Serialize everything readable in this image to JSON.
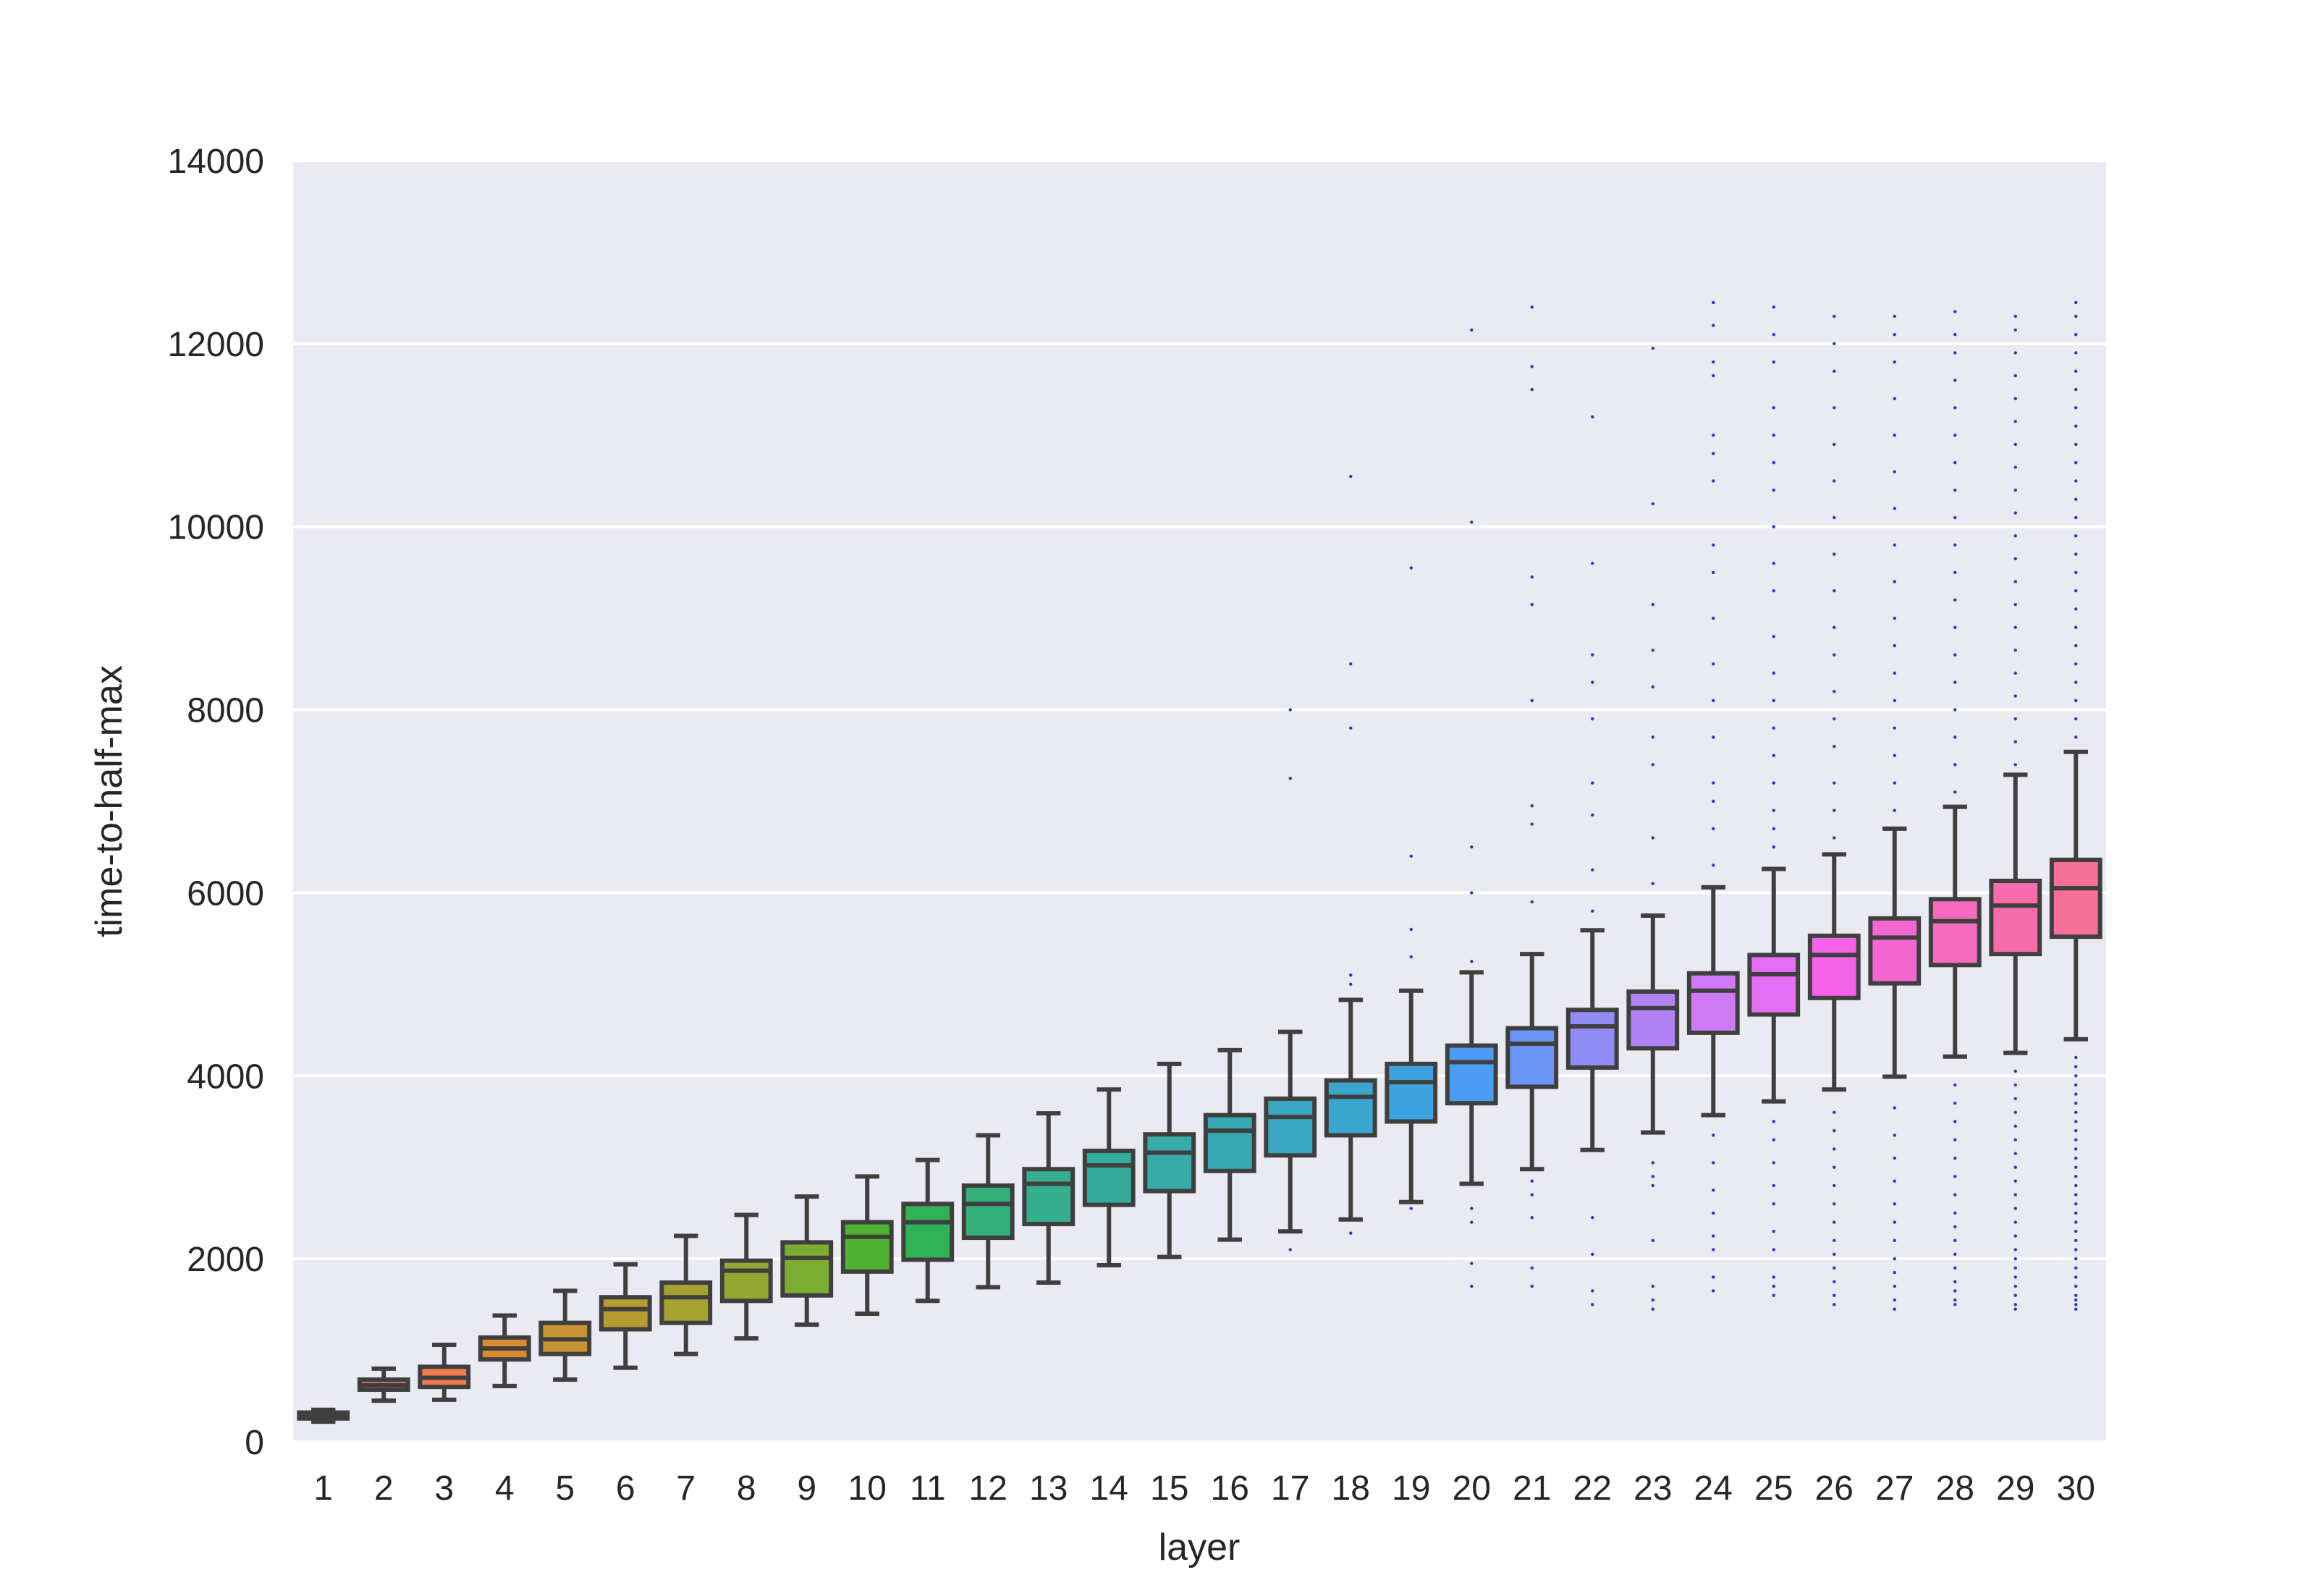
{
  "chart_data": {
    "type": "box",
    "title": "",
    "xlabel": "layer",
    "ylabel": "time-to-half-max",
    "ylim": [
      0,
      14000
    ],
    "yticks": [
      0,
      2000,
      4000,
      6000,
      8000,
      10000,
      12000,
      14000
    ],
    "grid": true,
    "legend": "none",
    "outlier_color": "#3333cc",
    "categories": [
      "1",
      "2",
      "3",
      "4",
      "5",
      "6",
      "7",
      "8",
      "9",
      "10",
      "11",
      "12",
      "13",
      "14",
      "15",
      "16",
      "17",
      "18",
      "19",
      "20",
      "21",
      "22",
      "23",
      "24",
      "25",
      "26",
      "27",
      "28",
      "29",
      "30"
    ],
    "colors": [
      "#f77189",
      "#f77575",
      "#f37c4c",
      "#d98b32",
      "#c69432",
      "#b59c31",
      "#a5a231",
      "#93a731",
      "#7aad31",
      "#4fb331",
      "#32b256",
      "#33b07a",
      "#34ae8d",
      "#35ac9b",
      "#36aba7",
      "#37a9b2",
      "#38a7bf",
      "#3aa5cd",
      "#3da2df",
      "#4d9cf4",
      "#6b95f4",
      "#8f8cf4",
      "#b083f4",
      "#cd7af4",
      "#e56ff4",
      "#f564e6",
      "#f567d0",
      "#f66bbd",
      "#f66dab",
      "#f7709a"
    ],
    "boxes": [
      {
        "whislo": 220,
        "q1": 255,
        "med": 285,
        "q3": 320,
        "whishi": 350
      },
      {
        "whislo": 450,
        "q1": 570,
        "med": 620,
        "q3": 680,
        "whishi": 800
      },
      {
        "whislo": 460,
        "q1": 600,
        "med": 700,
        "q3": 820,
        "whishi": 1060
      },
      {
        "whislo": 610,
        "q1": 900,
        "med": 1020,
        "q3": 1140,
        "whishi": 1380
      },
      {
        "whislo": 680,
        "q1": 960,
        "med": 1120,
        "q3": 1300,
        "whishi": 1650
      },
      {
        "whislo": 810,
        "q1": 1230,
        "med": 1450,
        "q3": 1580,
        "whishi": 1940
      },
      {
        "whislo": 960,
        "q1": 1300,
        "med": 1580,
        "q3": 1740,
        "whishi": 2250
      },
      {
        "whislo": 1130,
        "q1": 1540,
        "med": 1870,
        "q3": 1980,
        "whishi": 2480
      },
      {
        "whislo": 1280,
        "q1": 1600,
        "med": 2010,
        "q3": 2180,
        "whishi": 2680
      },
      {
        "whislo": 1400,
        "q1": 1860,
        "med": 2240,
        "q3": 2400,
        "whishi": 2900
      },
      {
        "whislo": 1540,
        "q1": 1990,
        "med": 2400,
        "q3": 2600,
        "whishi": 3080
      },
      {
        "whislo": 1690,
        "q1": 2230,
        "med": 2600,
        "q3": 2800,
        "whishi": 3350
      },
      {
        "whislo": 1740,
        "q1": 2380,
        "med": 2820,
        "q3": 2980,
        "whishi": 3590
      },
      {
        "whislo": 1930,
        "q1": 2590,
        "med": 3020,
        "q3": 3180,
        "whishi": 3850
      },
      {
        "whislo": 2020,
        "q1": 2740,
        "med": 3160,
        "q3": 3360,
        "whishi": 4130
      },
      {
        "whislo": 2210,
        "q1": 2960,
        "med": 3400,
        "q3": 3570,
        "whishi": 4280
      },
      {
        "whislo": 2300,
        "q1": 3130,
        "med": 3550,
        "q3": 3750,
        "whishi": 4480
      },
      {
        "whislo": 2430,
        "q1": 3350,
        "med": 3770,
        "q3": 3950,
        "whishi": 4830
      },
      {
        "whislo": 2620,
        "q1": 3500,
        "med": 3930,
        "q3": 4130,
        "whishi": 4930
      },
      {
        "whislo": 2820,
        "q1": 3700,
        "med": 4150,
        "q3": 4330,
        "whishi": 5130
      },
      {
        "whislo": 2980,
        "q1": 3880,
        "med": 4350,
        "q3": 4520,
        "whishi": 5330
      },
      {
        "whislo": 3190,
        "q1": 4090,
        "med": 4540,
        "q3": 4720,
        "whishi": 5590
      },
      {
        "whislo": 3380,
        "q1": 4300,
        "med": 4740,
        "q3": 4920,
        "whishi": 5750
      },
      {
        "whislo": 3570,
        "q1": 4470,
        "med": 4930,
        "q3": 5120,
        "whishi": 6060
      },
      {
        "whislo": 3720,
        "q1": 4670,
        "med": 5110,
        "q3": 5320,
        "whishi": 6260
      },
      {
        "whislo": 3850,
        "q1": 4850,
        "med": 5320,
        "q3": 5530,
        "whishi": 6420
      },
      {
        "whislo": 3990,
        "q1": 5010,
        "med": 5510,
        "q3": 5720,
        "whishi": 6700
      },
      {
        "whislo": 4210,
        "q1": 5210,
        "med": 5690,
        "q3": 5930,
        "whishi": 6940
      },
      {
        "whislo": 4250,
        "q1": 5330,
        "med": 5860,
        "q3": 6130,
        "whishi": 7290
      },
      {
        "whislo": 4400,
        "q1": 5520,
        "med": 6050,
        "q3": 6360,
        "whishi": 7540
      }
    ],
    "outliers": [
      [],
      [],
      [],
      [],
      [],
      [],
      [],
      [],
      [],
      [],
      [],
      [],
      [],
      [],
      [],
      [],
      [
        2100,
        7250,
        8000
      ],
      [
        2280,
        5000,
        5100,
        7800,
        8500,
        10550
      ],
      [
        2550,
        5300,
        5600,
        6400,
        9550
      ],
      [
        1700,
        1950,
        2400,
        2550,
        5250,
        6000,
        6500,
        10050,
        12150
      ],
      [
        1700,
        1900,
        2450,
        2700,
        2850,
        5900,
        6750,
        6950,
        8100,
        9150,
        9450,
        11500,
        11750,
        12400
      ],
      [
        1500,
        1650,
        2050,
        2450,
        5800,
        6250,
        6850,
        7200,
        7900,
        8300,
        8600,
        9600,
        11200
      ],
      [
        1450,
        1550,
        1700,
        2200,
        2800,
        2900,
        3050,
        6100,
        6600,
        7400,
        7700,
        8250,
        8650,
        9150,
        10250,
        11950
      ],
      [
        1650,
        1800,
        2100,
        2250,
        2500,
        2750,
        3050,
        3350,
        6300,
        6700,
        7000,
        7200,
        7700,
        8100,
        8500,
        9000,
        9500,
        9800,
        10500,
        10800,
        11000,
        11650,
        11800,
        12200,
        12450
      ],
      [
        1600,
        1700,
        1800,
        2100,
        2300,
        2600,
        2800,
        3050,
        3300,
        3500,
        6500,
        6700,
        6900,
        7200,
        7500,
        7800,
        8100,
        8400,
        8800,
        9300,
        9600,
        10000,
        10400,
        10700,
        11000,
        11300,
        11800,
        12100,
        12400
      ],
      [
        1500,
        1600,
        1750,
        1900,
        2050,
        2200,
        2400,
        2600,
        2800,
        3000,
        3200,
        3400,
        3600,
        6600,
        6900,
        7200,
        7600,
        7900,
        8200,
        8600,
        8900,
        9300,
        9700,
        10100,
        10500,
        10900,
        11300,
        11700,
        12000,
        12300
      ],
      [
        1450,
        1550,
        1700,
        1850,
        2000,
        2200,
        2400,
        2600,
        2850,
        3100,
        3350,
        3650,
        6900,
        7200,
        7500,
        7800,
        8100,
        8400,
        8700,
        9000,
        9400,
        9800,
        10200,
        10600,
        11000,
        11400,
        11800,
        12100,
        12300
      ],
      [
        1500,
        1550,
        1650,
        1750,
        1900,
        2050,
        2200,
        2350,
        2500,
        2700,
        2900,
        3100,
        3300,
        3500,
        3700,
        3900,
        7100,
        7400,
        7700,
        8000,
        8300,
        8600,
        8900,
        9200,
        9500,
        9800,
        10100,
        10400,
        10700,
        11000,
        11300,
        11600,
        11900,
        12100,
        12350
      ],
      [
        1450,
        1500,
        1600,
        1700,
        1800,
        1900,
        2000,
        2100,
        2250,
        2400,
        2550,
        2700,
        2850,
        3000,
        3150,
        3300,
        3450,
        3600,
        3750,
        3900,
        4050,
        7400,
        7650,
        7900,
        8150,
        8400,
        8650,
        8900,
        9150,
        9400,
        9650,
        9900,
        10150,
        10400,
        10650,
        10900,
        11150,
        11400,
        11650,
        11900,
        12150,
        12300
      ],
      [
        1450,
        1500,
        1550,
        1600,
        1700,
        1800,
        1900,
        2000,
        2100,
        2200,
        2300,
        2400,
        2500,
        2600,
        2700,
        2800,
        2900,
        3000,
        3100,
        3200,
        3300,
        3400,
        3500,
        3600,
        3700,
        3800,
        3900,
        4000,
        4100,
        4200,
        7700,
        7900,
        8100,
        8300,
        8500,
        8700,
        8900,
        9100,
        9300,
        9500,
        9700,
        9900,
        10100,
        10300,
        10500,
        10700,
        10900,
        11100,
        11300,
        11500,
        11700,
        11900,
        12100,
        12300,
        12450
      ]
    ]
  }
}
